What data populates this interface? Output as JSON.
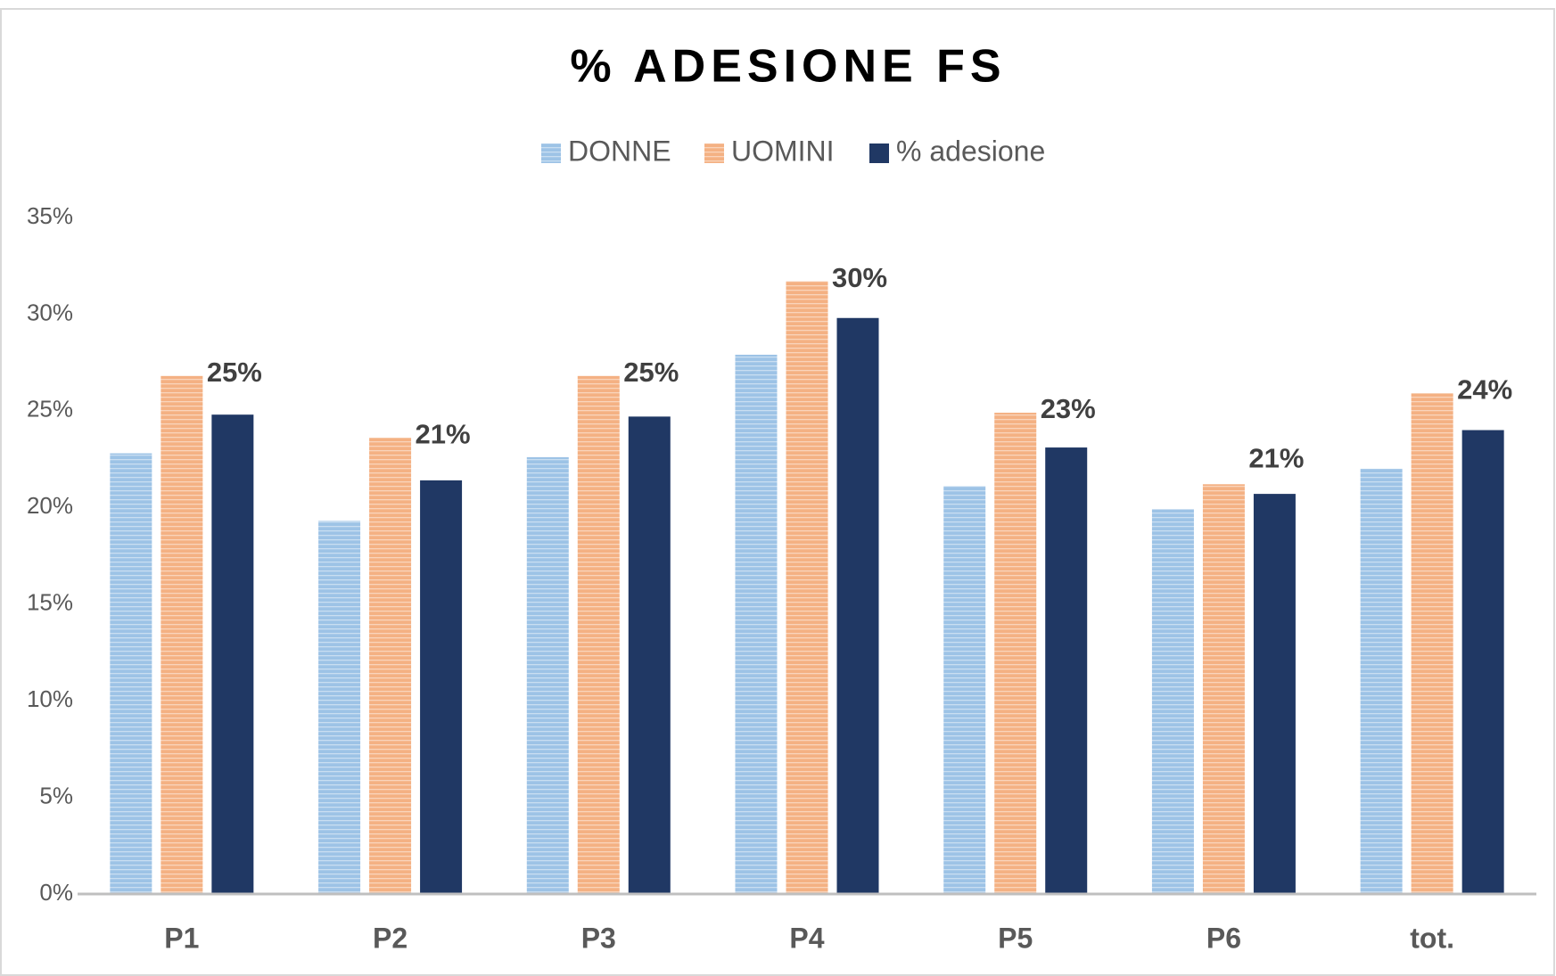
{
  "chart_data": {
    "type": "bar",
    "title": "% ADESIONE FS",
    "categories": [
      "P1",
      "P2",
      "P3",
      "P4",
      "P5",
      "P6",
      "tot."
    ],
    "series": [
      {
        "name": "DONNE",
        "color": "#9dc3e6",
        "values": [
          22.8,
          19.3,
          22.6,
          27.9,
          21.1,
          19.9,
          22.0
        ]
      },
      {
        "name": "UOMINI",
        "color": "#f4b183",
        "values": [
          26.8,
          23.6,
          26.8,
          31.7,
          24.9,
          21.2,
          25.9
        ]
      },
      {
        "name": "% adesione",
        "color": "#203864",
        "values": [
          24.8,
          21.4,
          24.7,
          29.8,
          23.1,
          20.7,
          24.0
        ],
        "value_labels": [
          "25%",
          "21%",
          "25%",
          "30%",
          "23%",
          "21%",
          "24%"
        ]
      }
    ],
    "ylim": [
      0,
      35
    ],
    "yticks": [
      {
        "value": 0,
        "label": "0%"
      },
      {
        "value": 5,
        "label": "5%"
      },
      {
        "value": 10,
        "label": "10%"
      },
      {
        "value": 15,
        "label": "15%"
      },
      {
        "value": 20,
        "label": "20%"
      },
      {
        "value": 25,
        "label": "25%"
      },
      {
        "value": 30,
        "label": "30%"
      },
      {
        "value": 35,
        "label": "35%"
      }
    ],
    "grid": false,
    "legend": "top"
  }
}
